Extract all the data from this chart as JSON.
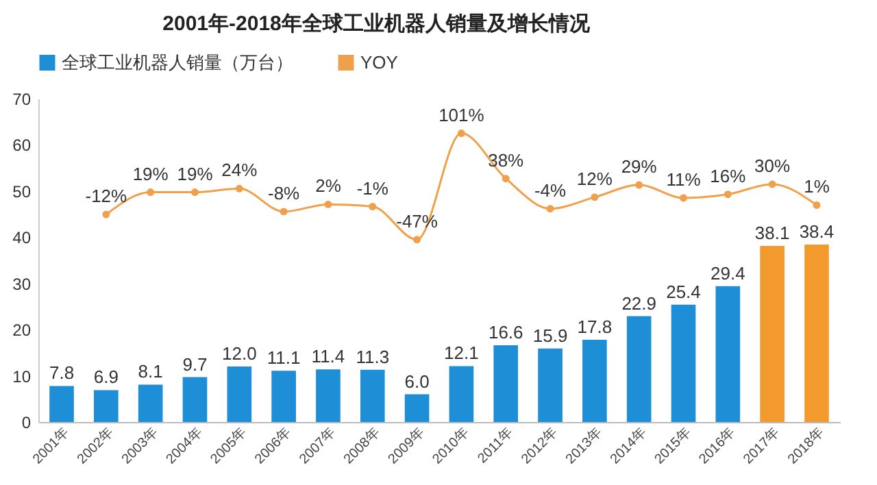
{
  "chart_data": {
    "type": "bar",
    "title": "2001年-2018年全球工业机器人销量及增长情况",
    "categories": [
      "2001年",
      "2002年",
      "2003年",
      "2004年",
      "2005年",
      "2006年",
      "2007年",
      "2008年",
      "2009年",
      "2010年",
      "2011年",
      "2012年",
      "2013年",
      "2014年",
      "2015年",
      "2016年",
      "2017年",
      "2018年"
    ],
    "series": [
      {
        "name": "全球工业机器人销量（万台）",
        "color": "#1e8fd6",
        "colors": [
          "#1e8fd6",
          "#1e8fd6",
          "#1e8fd6",
          "#1e8fd6",
          "#1e8fd6",
          "#1e8fd6",
          "#1e8fd6",
          "#1e8fd6",
          "#1e8fd6",
          "#1e8fd6",
          "#1e8fd6",
          "#1e8fd6",
          "#1e8fd6",
          "#1e8fd6",
          "#1e8fd6",
          "#1e8fd6",
          "#f39a2e",
          "#f39a2e"
        ],
        "values": [
          7.8,
          6.9,
          8.1,
          9.7,
          12.0,
          11.1,
          11.4,
          11.3,
          6.0,
          12.1,
          16.6,
          15.9,
          17.8,
          22.9,
          25.4,
          29.4,
          38.1,
          38.4
        ],
        "value_labels": [
          "7.8",
          "6.9",
          "8.1",
          "9.7",
          "12.0",
          "11.1",
          "11.4",
          "11.3",
          "6.0",
          "12.1",
          "16.6",
          "15.9",
          "17.8",
          "22.9",
          "25.4",
          "29.4",
          "38.1",
          "38.4"
        ]
      },
      {
        "name": "YOY",
        "type": "line",
        "axis": "y2",
        "color": "#f0a04b",
        "marker": "circle",
        "values": [
          null,
          -12,
          19,
          19,
          24,
          -8,
          2,
          -1,
          -47,
          101,
          38,
          -4,
          12,
          29,
          11,
          16,
          30,
          1
        ],
        "value_labels": [
          null,
          "-12%",
          "19%",
          "19%",
          "24%",
          "-8%",
          "2%",
          "-1%",
          "-47%",
          "101%",
          "38%",
          "-4%",
          "12%",
          "29%",
          "11%",
          "16%",
          "30%",
          "1%"
        ]
      }
    ],
    "ylim": [
      0,
      70
    ],
    "yticks": [
      0,
      10,
      20,
      30,
      40,
      50,
      60,
      70
    ],
    "grid": false,
    "legend": "top"
  }
}
